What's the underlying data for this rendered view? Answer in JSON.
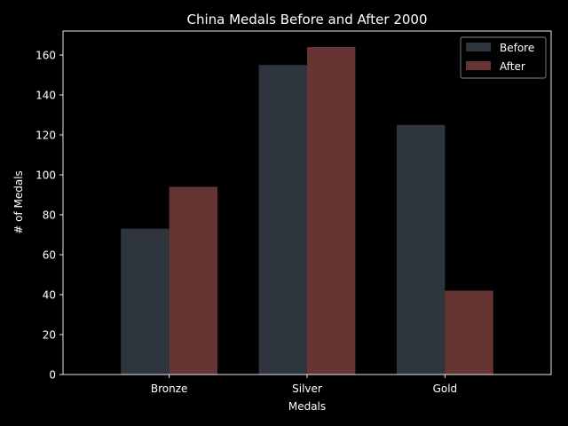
{
  "chart_data": {
    "type": "bar",
    "title": "China Medals Before and After 2000",
    "xlabel": "Medals",
    "ylabel": "# of Medals",
    "categories": [
      "Bronze",
      "Silver",
      "Gold"
    ],
    "series": [
      {
        "name": "Before",
        "values": [
          73,
          155,
          125
        ],
        "color": "#2e353d"
      },
      {
        "name": "After",
        "values": [
          94,
          164,
          42
        ],
        "color": "#673434"
      }
    ],
    "ylim": [
      0,
      172
    ],
    "yticks": [
      0,
      20,
      40,
      60,
      80,
      100,
      120,
      140,
      160
    ],
    "grid": false,
    "legend_position": "top-right"
  }
}
